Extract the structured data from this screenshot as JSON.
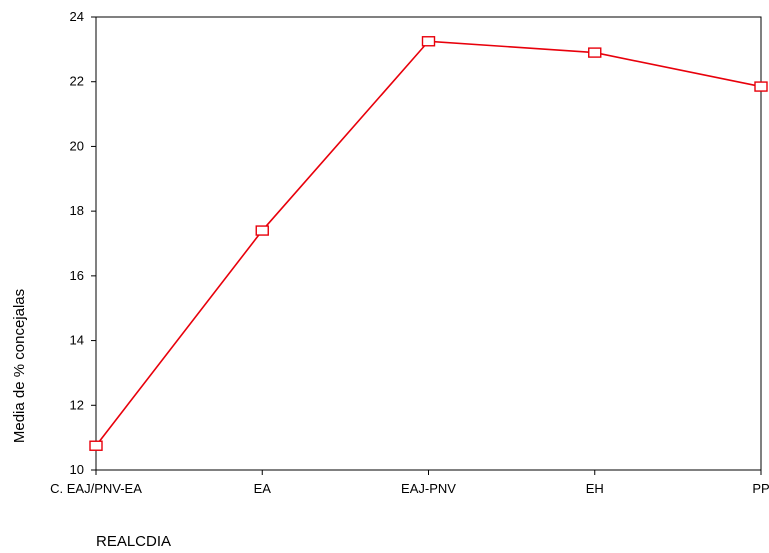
{
  "chart_data": {
    "type": "line",
    "categories": [
      "C. EAJ/PNV-EA",
      "EA",
      "EAJ-PNV",
      "EH",
      "PP"
    ],
    "series": [
      {
        "values": [
          10.75,
          17.4,
          23.25,
          22.9,
          21.85
        ]
      }
    ],
    "xlabel": "REALCDIA",
    "ylabel": "Media de % concejalas",
    "ylim": [
      10,
      24
    ],
    "yticks": [
      10,
      12,
      14,
      16,
      18,
      20,
      22,
      24
    ],
    "grid": false,
    "line_color": "#e8000b",
    "marker": "square"
  }
}
